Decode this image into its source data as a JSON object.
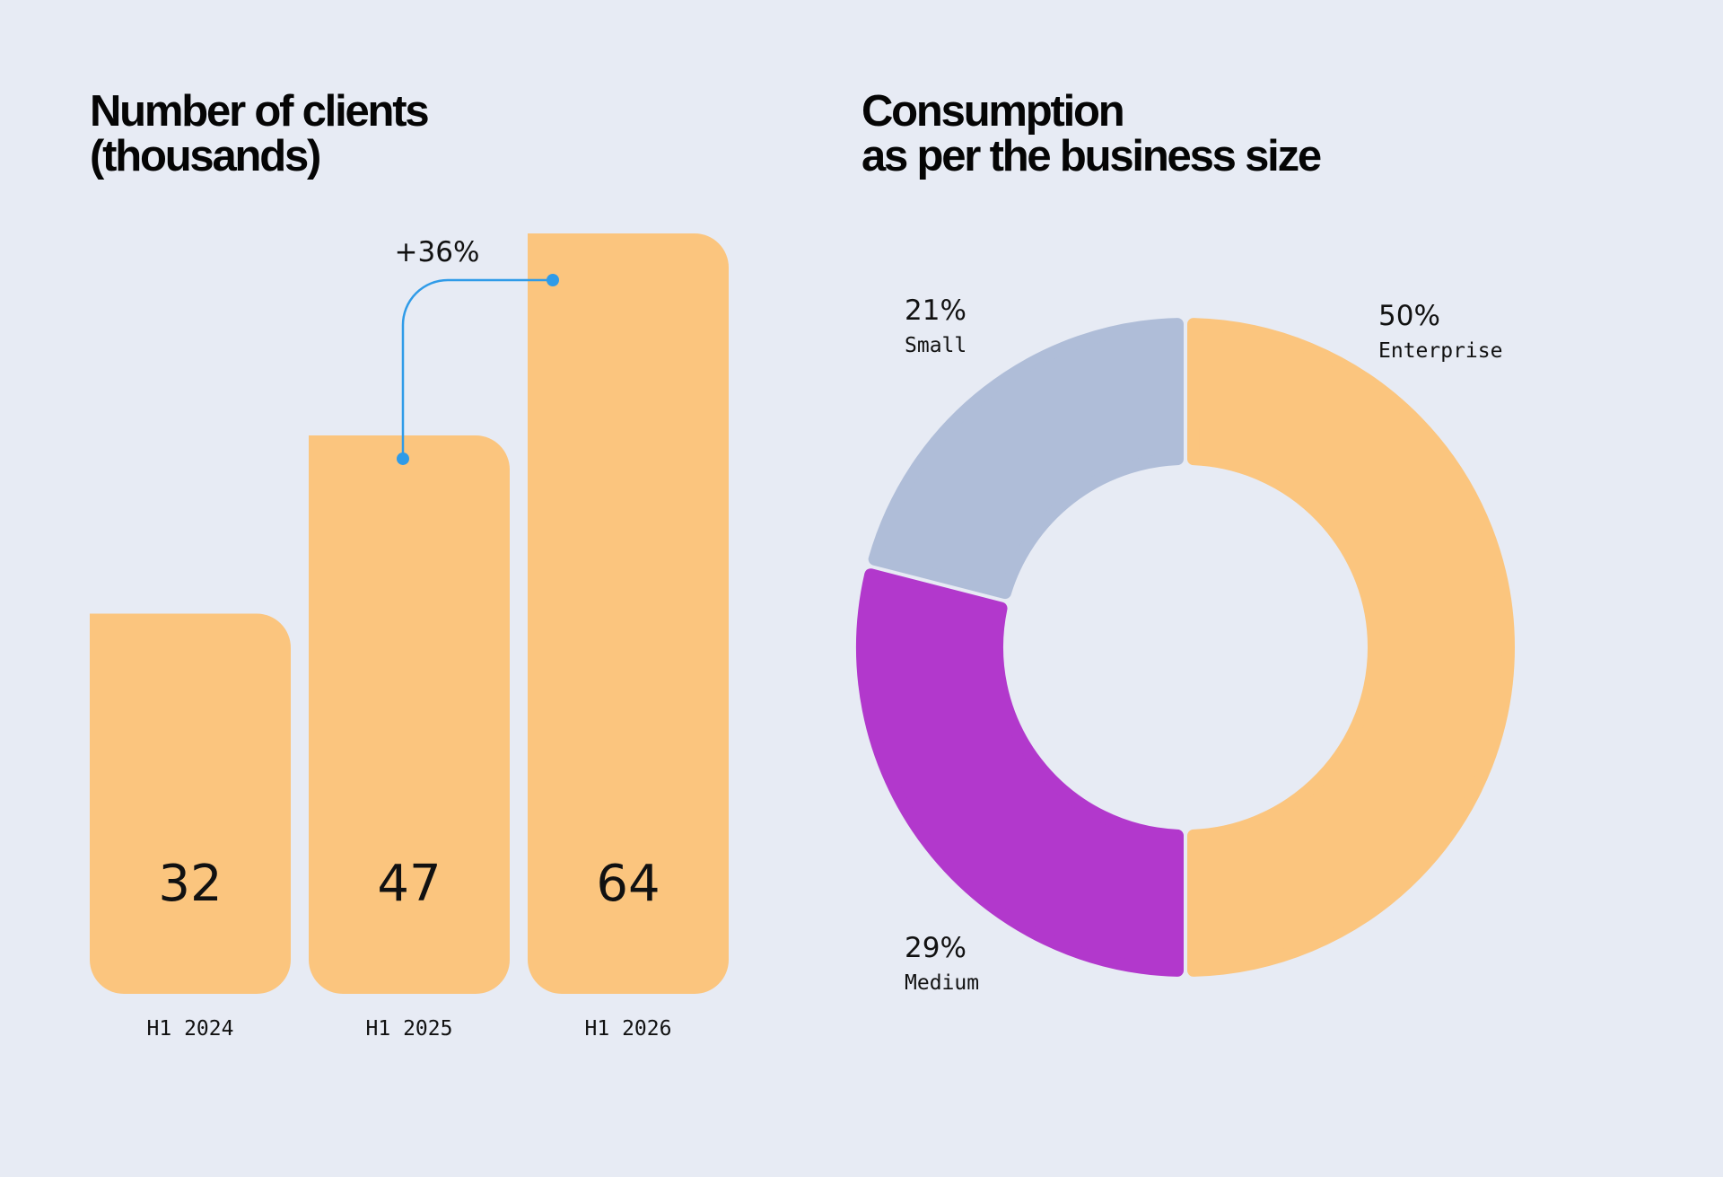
{
  "colors": {
    "background": "#e7ebf4",
    "bar": "#fbc57e",
    "accent_line": "#2f9be8",
    "enterprise": "#fbc57e",
    "medium": "#b238cc",
    "small": "#afbdd8"
  },
  "chart_data": [
    {
      "type": "bar",
      "title": [
        "Number of clients",
        "(thousands)"
      ],
      "categories": [
        "H1 2024",
        "H1 2025",
        "H1 2026"
      ],
      "values": [
        32,
        47,
        64
      ],
      "ylim": [
        0,
        64
      ],
      "grid": false,
      "annotation": {
        "text": "+36%",
        "from": "H1 2025",
        "to": "H1 2026"
      }
    },
    {
      "type": "pie",
      "variant": "donut",
      "title": [
        "Consumption",
        "as per the business size"
      ],
      "series": [
        {
          "name": "Enterprise",
          "value": 50,
          "label": "50%"
        },
        {
          "name": "Medium",
          "value": 29,
          "label": "29%"
        },
        {
          "name": "Small",
          "value": 21,
          "label": "21%"
        }
      ]
    }
  ]
}
